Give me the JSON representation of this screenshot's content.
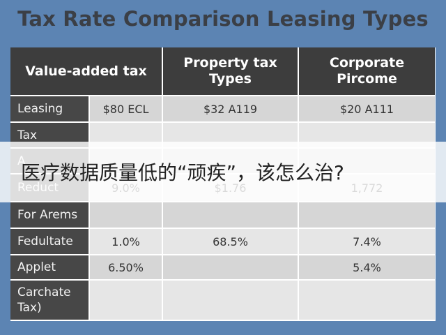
{
  "header": {
    "title": "Tax Rate Comparison Leasing Types"
  },
  "table": {
    "columns": [
      "Value-added tax",
      "Property tax Types",
      "Corporate Pircome"
    ],
    "rows": [
      [
        "Leasing",
        "$80 ECL",
        "$32 A119",
        "$20 A111"
      ],
      [
        "Tax",
        null,
        null,
        null
      ],
      [
        "A",
        null,
        null,
        null
      ],
      [
        "Reduct",
        "9.0%",
        "$1.76",
        "1,772"
      ],
      [
        "For Arems",
        null,
        null,
        null
      ],
      [
        "Fedultate",
        "1.0%",
        "68.5%",
        "7.4%"
      ],
      [
        "Applet",
        "6.50%",
        null,
        "5.4%"
      ],
      [
        "Carchate Tax)",
        null,
        null,
        null
      ]
    ]
  },
  "caption": "医疗数据质量低的“顽疾”，该怎么治?"
}
